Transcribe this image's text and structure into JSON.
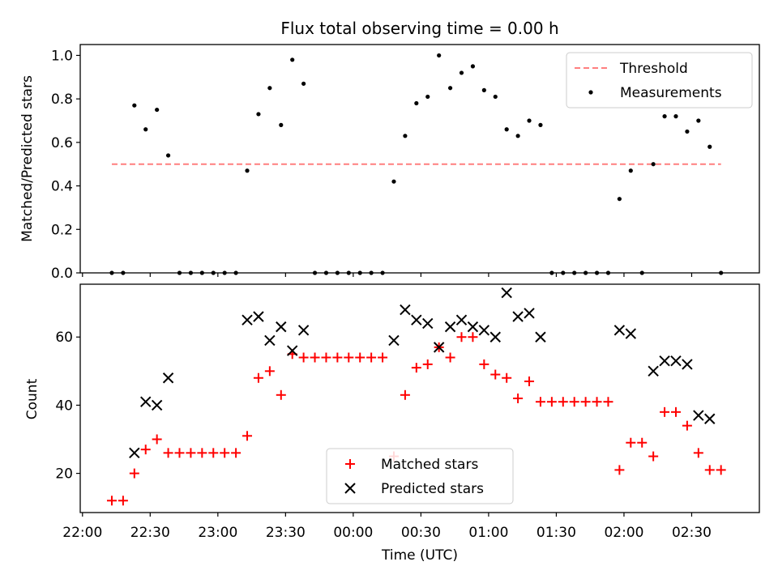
{
  "chart_data": [
    {
      "type": "scatter",
      "title": "Flux total observing time = 0.00 h",
      "xlabel": "",
      "ylabel": "Matched/Predicted stars",
      "ylim": [
        0,
        1.05
      ],
      "yticks": [
        0.0,
        0.2,
        0.4,
        0.6,
        0.8,
        1.0
      ],
      "ytick_labels": [
        "0.0",
        "0.2",
        "0.4",
        "0.6",
        "0.8",
        "1.0"
      ],
      "legend_position": "top-right",
      "threshold": {
        "name": "Threshold",
        "value": 0.5,
        "color": "#ff7f7f",
        "x_start": "22:13",
        "x_end": "02:43"
      },
      "series": [
        {
          "name": "Measurements",
          "color": "#000000",
          "x": [
            "22:13",
            "22:18",
            "22:23",
            "22:28",
            "22:33",
            "22:38",
            "22:43",
            "22:48",
            "22:53",
            "22:58",
            "23:03",
            "23:08",
            "23:13",
            "23:18",
            "23:23",
            "23:28",
            "23:33",
            "23:38",
            "23:43",
            "23:48",
            "23:53",
            "23:58",
            "00:03",
            "00:08",
            "00:13",
            "00:18",
            "00:23",
            "00:28",
            "00:33",
            "00:38",
            "00:43",
            "00:48",
            "00:53",
            "00:58",
            "01:03",
            "01:08",
            "01:13",
            "01:18",
            "01:23",
            "01:28",
            "01:33",
            "01:38",
            "01:43",
            "01:48",
            "01:53",
            "01:58",
            "02:03",
            "02:08",
            "02:13",
            "02:18",
            "02:23",
            "02:28",
            "02:33",
            "02:38",
            "02:43"
          ],
          "y": [
            0,
            0,
            0.77,
            0.66,
            0.75,
            0.54,
            0,
            0,
            0,
            0,
            0,
            0,
            0.47,
            0.73,
            0.85,
            0.68,
            0.98,
            0.87,
            0,
            0,
            0,
            0,
            0,
            0,
            0,
            0.42,
            0.63,
            0.78,
            0.81,
            1.0,
            0.85,
            0.92,
            0.95,
            0.84,
            0.81,
            0.66,
            0.63,
            0.7,
            0.68,
            0,
            0,
            0,
            0,
            0,
            0,
            0.34,
            0.47,
            0,
            0.5,
            0.72,
            0.72,
            0.65,
            0.7,
            0.58,
            0
          ]
        }
      ]
    },
    {
      "type": "scatter",
      "title": "",
      "xlabel": "Time (UTC)",
      "ylabel": "Count",
      "ylim": [
        8.5,
        75.5
      ],
      "yticks": [
        20,
        40,
        60
      ],
      "ytick_labels": [
        "20",
        "40",
        "60"
      ],
      "xlim": [
        "21:59",
        "03:00"
      ],
      "xticks": [
        "22:00",
        "22:30",
        "23:00",
        "23:30",
        "00:00",
        "00:30",
        "01:00",
        "01:30",
        "02:00",
        "02:30"
      ],
      "legend_position": "lower-center",
      "series": [
        {
          "name": "Matched stars",
          "marker": "plus",
          "color": "#ff0000",
          "x": [
            "22:13",
            "22:18",
            "22:23",
            "22:28",
            "22:33",
            "22:38",
            "22:43",
            "22:48",
            "22:53",
            "22:58",
            "23:03",
            "23:08",
            "23:13",
            "23:18",
            "23:23",
            "23:28",
            "23:33",
            "23:38",
            "23:43",
            "23:48",
            "23:53",
            "23:58",
            "00:03",
            "00:08",
            "00:13",
            "00:18",
            "00:23",
            "00:28",
            "00:33",
            "00:38",
            "00:43",
            "00:48",
            "00:53",
            "00:58",
            "01:03",
            "01:08",
            "01:13",
            "01:18",
            "01:23",
            "01:28",
            "01:33",
            "01:38",
            "01:43",
            "01:48",
            "01:53",
            "01:58",
            "02:03",
            "02:08",
            "02:13",
            "02:18",
            "02:23",
            "02:28",
            "02:33",
            "02:38",
            "02:43"
          ],
          "y": [
            12,
            12,
            20,
            27,
            30,
            26,
            26,
            26,
            26,
            26,
            26,
            26,
            31,
            48,
            50,
            43,
            55,
            54,
            54,
            54,
            54,
            54,
            54,
            54,
            54,
            25,
            43,
            51,
            52,
            57,
            54,
            60,
            60,
            52,
            49,
            48,
            42,
            47,
            41,
            41,
            41,
            41,
            41,
            41,
            41,
            21,
            29,
            29,
            25,
            38,
            38,
            34,
            26,
            21,
            21
          ]
        },
        {
          "name": "Predicted stars",
          "marker": "x",
          "color": "#000000",
          "x": [
            "22:23",
            "22:28",
            "22:33",
            "22:38",
            "23:13",
            "23:18",
            "23:23",
            "23:28",
            "23:33",
            "23:38",
            "00:18",
            "00:23",
            "00:28",
            "00:33",
            "00:38",
            "00:43",
            "00:48",
            "00:53",
            "00:58",
            "01:03",
            "01:08",
            "01:13",
            "01:18",
            "01:23",
            "01:58",
            "02:03",
            "02:13",
            "02:18",
            "02:23",
            "02:28",
            "02:33",
            "02:38"
          ],
          "y": [
            26,
            41,
            40,
            48,
            65,
            66,
            59,
            63,
            56,
            62,
            59,
            68,
            65,
            64,
            57,
            63,
            65,
            63,
            62,
            60,
            73,
            66,
            67,
            60,
            62,
            61,
            50,
            53,
            53,
            52,
            37,
            36
          ]
        }
      ]
    }
  ]
}
